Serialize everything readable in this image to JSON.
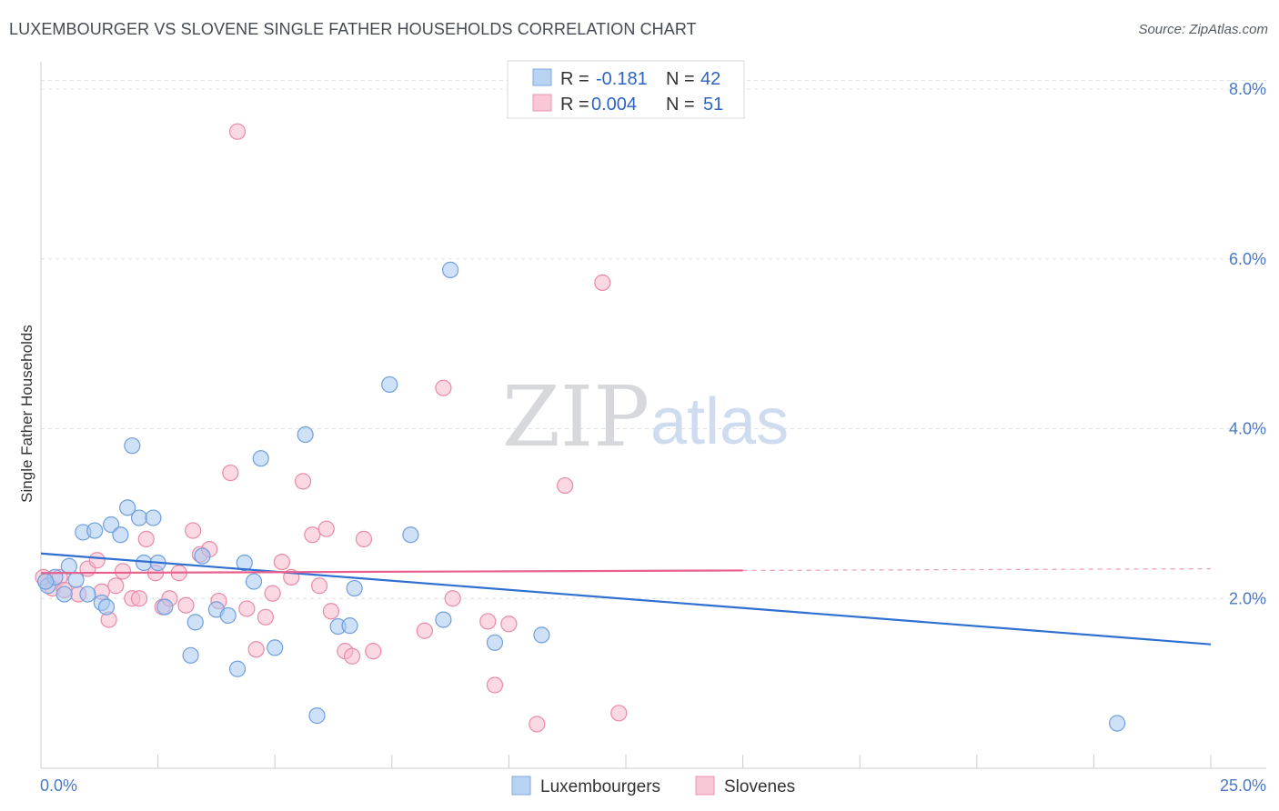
{
  "header": {
    "title": "LUXEMBOURGER VS SLOVENE SINGLE FATHER HOUSEHOLDS CORRELATION CHART",
    "source": "Source: ZipAtlas.com"
  },
  "watermark": {
    "zip": "ZIP",
    "atlas": "atlas"
  },
  "colors": {
    "lux_fill": "#a8c8f0",
    "lux_stroke": "#6f9fdd",
    "lux_line": "#2f6fd0",
    "slo_fill": "#f7b9cc",
    "slo_stroke": "#e98aa8",
    "slo_line": "#e8608c",
    "grid": "#dde1e6",
    "axis_tick": "#4a78c4"
  },
  "legend": {
    "r_label": "R =",
    "n_label": "N =",
    "rows": [
      {
        "r": "-0.181",
        "n": "42"
      },
      {
        "r": "0.004",
        "n": "51"
      }
    ]
  },
  "bottom_legend": [
    "Luxembourgers",
    "Slovenes"
  ],
  "chart_data": {
    "type": "scatter",
    "title": "LUXEMBOURGER VS SLOVENE SINGLE FATHER HOUSEHOLDS CORRELATION CHART",
    "xlabel": "",
    "ylabel": "Single Father Households",
    "xlim": [
      0,
      25
    ],
    "ylim": [
      0,
      8.5
    ],
    "x_tick_labels": [
      "0.0%",
      "25.0%"
    ],
    "y_ticks": [
      2,
      4,
      6,
      8
    ],
    "y_tick_labels": [
      "2.0%",
      "4.0%",
      "6.0%",
      "8.0%"
    ],
    "series": [
      {
        "name": "Luxembourgers",
        "r": -0.181,
        "n": 42,
        "trend": {
          "x0": 0,
          "y0": 2.53,
          "x1": 25,
          "y1": 1.46
        },
        "points": [
          [
            0.15,
            2.15
          ],
          [
            0.3,
            2.25
          ],
          [
            0.5,
            2.05
          ],
          [
            0.6,
            2.38
          ],
          [
            0.75,
            2.22
          ],
          [
            0.9,
            2.78
          ],
          [
            1.0,
            2.05
          ],
          [
            1.15,
            2.8
          ],
          [
            1.3,
            1.95
          ],
          [
            1.4,
            1.9
          ],
          [
            1.5,
            2.87
          ],
          [
            1.7,
            2.75
          ],
          [
            1.85,
            3.07
          ],
          [
            1.95,
            3.8
          ],
          [
            2.1,
            2.95
          ],
          [
            2.2,
            2.42
          ],
          [
            2.4,
            2.95
          ],
          [
            2.5,
            2.42
          ],
          [
            2.65,
            1.9
          ],
          [
            3.2,
            1.33
          ],
          [
            3.3,
            1.72
          ],
          [
            3.45,
            2.5
          ],
          [
            3.75,
            1.87
          ],
          [
            4.0,
            1.8
          ],
          [
            4.2,
            1.17
          ],
          [
            4.35,
            2.42
          ],
          [
            4.55,
            2.2
          ],
          [
            4.7,
            3.65
          ],
          [
            5.0,
            1.42
          ],
          [
            5.65,
            3.93
          ],
          [
            5.9,
            0.62
          ],
          [
            6.35,
            1.67
          ],
          [
            6.6,
            1.68
          ],
          [
            6.7,
            2.12
          ],
          [
            7.45,
            4.52
          ],
          [
            7.9,
            2.75
          ],
          [
            8.6,
            1.75
          ],
          [
            8.75,
            5.87
          ],
          [
            9.7,
            1.48
          ],
          [
            10.7,
            1.57
          ],
          [
            23.0,
            0.53
          ],
          [
            0.1,
            2.2
          ]
        ]
      },
      {
        "name": "Slovenes",
        "r": 0.004,
        "n": 51,
        "trend": {
          "x0": 0,
          "y0": 2.3,
          "x1": 15,
          "y1": 2.33,
          "dashed_to_x": 25
        },
        "points": [
          [
            0.1,
            2.2
          ],
          [
            0.25,
            2.12
          ],
          [
            0.4,
            2.25
          ],
          [
            0.5,
            2.1
          ],
          [
            0.8,
            2.05
          ],
          [
            1.0,
            2.35
          ],
          [
            1.2,
            2.45
          ],
          [
            1.3,
            2.08
          ],
          [
            1.45,
            1.75
          ],
          [
            1.6,
            2.15
          ],
          [
            1.75,
            2.32
          ],
          [
            1.95,
            2.0
          ],
          [
            2.1,
            2.0
          ],
          [
            2.25,
            2.7
          ],
          [
            2.45,
            2.3
          ],
          [
            2.6,
            1.9
          ],
          [
            2.75,
            2.0
          ],
          [
            2.95,
            2.3
          ],
          [
            3.1,
            1.92
          ],
          [
            3.25,
            2.8
          ],
          [
            3.4,
            2.52
          ],
          [
            3.6,
            2.58
          ],
          [
            3.8,
            1.97
          ],
          [
            4.05,
            3.48
          ],
          [
            4.2,
            7.5
          ],
          [
            4.4,
            1.88
          ],
          [
            4.6,
            1.4
          ],
          [
            4.8,
            1.78
          ],
          [
            4.95,
            2.06
          ],
          [
            5.15,
            2.43
          ],
          [
            5.35,
            2.25
          ],
          [
            5.6,
            3.38
          ],
          [
            5.8,
            2.75
          ],
          [
            5.95,
            2.15
          ],
          [
            6.1,
            2.82
          ],
          [
            6.2,
            1.85
          ],
          [
            6.5,
            1.38
          ],
          [
            6.65,
            1.32
          ],
          [
            6.9,
            2.7
          ],
          [
            7.1,
            1.38
          ],
          [
            8.2,
            1.62
          ],
          [
            8.6,
            4.48
          ],
          [
            8.8,
            2.0
          ],
          [
            9.55,
            1.73
          ],
          [
            9.7,
            0.98
          ],
          [
            10.0,
            1.7
          ],
          [
            10.6,
            0.52
          ],
          [
            11.2,
            3.33
          ],
          [
            12.0,
            5.72
          ],
          [
            12.35,
            0.65
          ],
          [
            0.05,
            2.25
          ]
        ]
      }
    ]
  }
}
